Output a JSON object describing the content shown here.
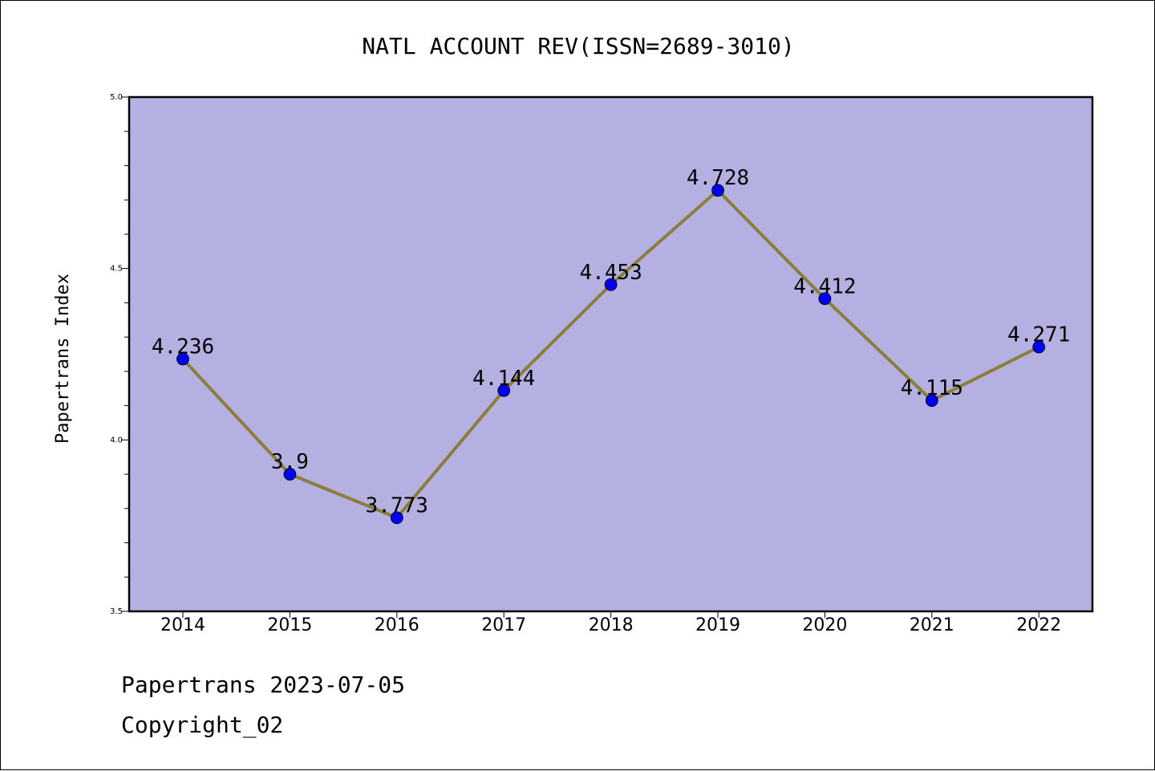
{
  "chart_data": {
    "type": "line",
    "title": "NATL ACCOUNT REV(ISSN=2689-3010)",
    "ylabel": "Papertrans Index",
    "xlabel": "",
    "categories": [
      "2014",
      "2015",
      "2016",
      "2017",
      "2018",
      "2019",
      "2020",
      "2021",
      "2022"
    ],
    "values": [
      4.236,
      3.9,
      3.773,
      4.144,
      4.453,
      4.728,
      4.412,
      4.115,
      4.271
    ],
    "data_labels": [
      "4.236",
      "3.9",
      "3.773",
      "4.144",
      "4.453",
      "4.728",
      "4.412",
      "4.115",
      "4.271"
    ],
    "ylim": [
      3.5,
      5.0
    ],
    "yticks": [
      "3.5",
      "4.0",
      "4.5",
      "5.0"
    ],
    "grid": false,
    "colors": {
      "plot_background": "#b5b0e2",
      "line": "#8b7d3a",
      "marker": "#0000ee"
    }
  },
  "footer": {
    "line1": "Papertrans 2023-07-05",
    "line2": "Copyright_02"
  }
}
